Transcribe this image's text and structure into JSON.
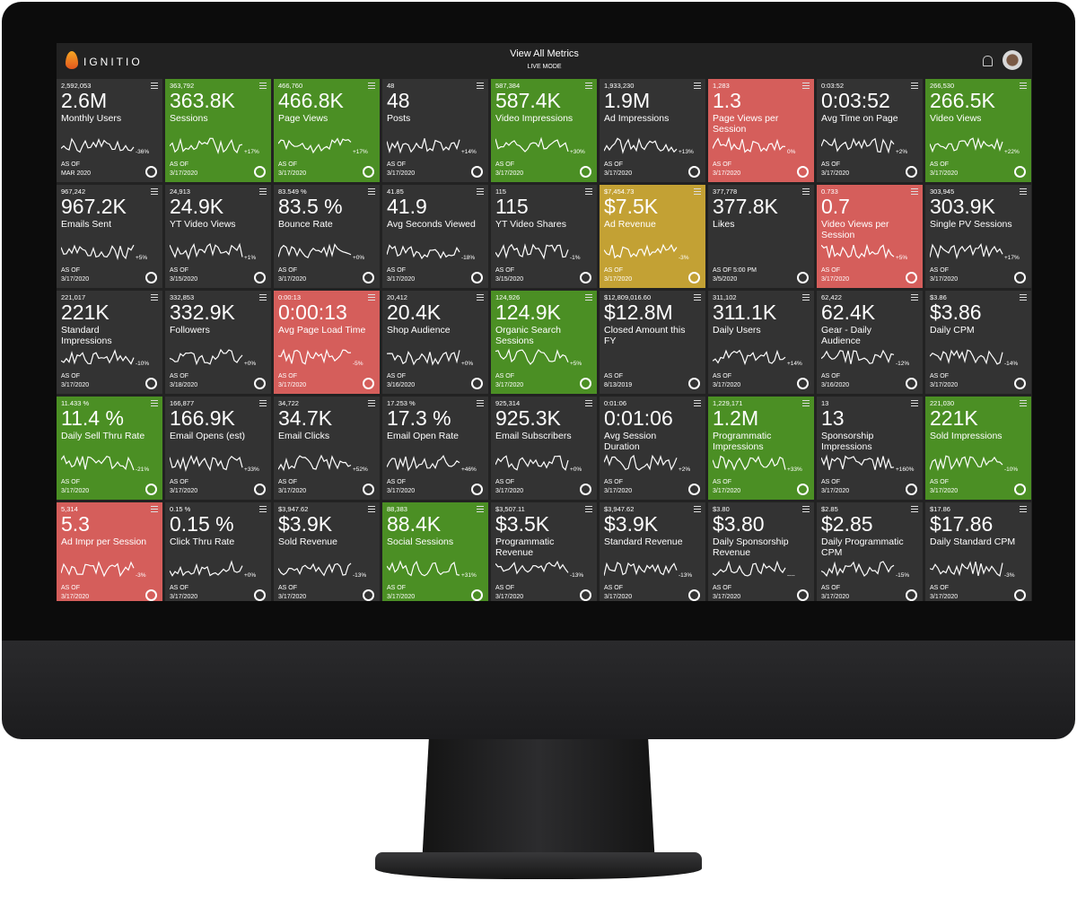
{
  "header": {
    "logo": "IGNITIO",
    "title": "View All Metrics",
    "mode": "LIVE MODE"
  },
  "as_of": "AS OF",
  "tiles": [
    {
      "raw": "2,592,053",
      "value": "2.6M",
      "label": "Monthly Users",
      "change": "-36%",
      "date": "MAR 2020",
      "color": "#333333"
    },
    {
      "raw": "363,792",
      "value": "363.8K",
      "label": "Sessions",
      "change": "+17%",
      "date": "3/17/2020",
      "color": "#4b8f24"
    },
    {
      "raw": "466,760",
      "value": "466.8K",
      "label": "Page Views",
      "change": "+17%",
      "date": "3/17/2020",
      "color": "#4b8f24"
    },
    {
      "raw": "48",
      "value": "48",
      "label": "Posts",
      "change": "+14%",
      "date": "3/17/2020",
      "color": "#333333"
    },
    {
      "raw": "587,384",
      "value": "587.4K",
      "label": "Video Impressions",
      "change": "+30%",
      "date": "3/17/2020",
      "color": "#4b8f24"
    },
    {
      "raw": "1,933,230",
      "value": "1.9M",
      "label": "Ad Impressions",
      "change": "+13%",
      "date": "3/17/2020",
      "color": "#333333"
    },
    {
      "raw": "1,283",
      "value": "1.3",
      "label": "Page Views per Session",
      "change": "0%",
      "date": "3/17/2020",
      "color": "#d55e5b"
    },
    {
      "raw": "0:03:52",
      "value": "0:03:52",
      "label": "Avg Time on Page",
      "change": "+2%",
      "date": "3/17/2020",
      "color": "#333333"
    },
    {
      "raw": "266,530",
      "value": "266.5K",
      "label": "Video Views",
      "change": "+22%",
      "date": "3/17/2020",
      "color": "#4b8f24"
    },
    {
      "raw": "967,242",
      "value": "967.2K",
      "label": "Emails Sent",
      "change": "+5%",
      "date": "3/17/2020",
      "color": "#333333"
    },
    {
      "raw": "24,913",
      "value": "24.9K",
      "label": "YT Video Views",
      "change": "+1%",
      "date": "3/15/2020",
      "color": "#333333"
    },
    {
      "raw": "83.549 %",
      "value": "83.5 %",
      "label": "Bounce Rate",
      "change": "+0%",
      "date": "3/17/2020",
      "color": "#333333"
    },
    {
      "raw": "41.85",
      "value": "41.9",
      "label": "Avg Seconds Viewed",
      "change": "-18%",
      "date": "3/17/2020",
      "color": "#333333"
    },
    {
      "raw": "115",
      "value": "115",
      "label": "YT Video Shares",
      "change": "-1%",
      "date": "3/15/2020",
      "color": "#333333"
    },
    {
      "raw": "$7,454.73",
      "value": "$7.5K",
      "label": "Ad Revenue",
      "change": "-3%",
      "date": "3/17/2020",
      "color": "#c3a134"
    },
    {
      "raw": "377,778",
      "value": "377.8K",
      "label": "Likes",
      "as_of": "AS OF 5:00 PM",
      "date": "3/5/2020",
      "color": "#333333"
    },
    {
      "raw": "0.733",
      "value": "0.7",
      "label": "Video Views per Session",
      "change": "+5%",
      "date": "3/17/2020",
      "color": "#d55e5b"
    },
    {
      "raw": "303,945",
      "value": "303.9K",
      "label": "Single PV Sessions",
      "change": "+17%",
      "date": "3/17/2020",
      "color": "#333333"
    },
    {
      "raw": "221,017",
      "value": "221K",
      "label": "Standard Impressions",
      "change": "-10%",
      "date": "3/17/2020",
      "color": "#333333"
    },
    {
      "raw": "332,853",
      "value": "332.9K",
      "label": "Followers",
      "change": "+0%",
      "date": "3/18/2020",
      "color": "#333333"
    },
    {
      "raw": "0:00:13",
      "value": "0:00:13",
      "label": "Avg Page Load Time",
      "change": "-5%",
      "date": "3/17/2020",
      "color": "#d55e5b"
    },
    {
      "raw": "20,412",
      "value": "20.4K",
      "label": "Shop Audience",
      "change": "+0%",
      "date": "3/16/2020",
      "color": "#333333"
    },
    {
      "raw": "124,926",
      "value": "124.9K",
      "label": "Organic Search Sessions",
      "change": "+5%",
      "date": "3/17/2020",
      "color": "#4b8f24"
    },
    {
      "raw": "$12,809,016.60",
      "value": "$12.8M",
      "label": "Closed Amount this FY",
      "date": "8/13/2019",
      "color": "#333333"
    },
    {
      "raw": "311,102",
      "value": "311.1K",
      "label": "Daily Users",
      "change": "+14%",
      "date": "3/17/2020",
      "color": "#333333"
    },
    {
      "raw": "62,422",
      "value": "62.4K",
      "label": "Gear - Daily Audience",
      "change": "-12%",
      "date": "3/16/2020",
      "color": "#333333"
    },
    {
      "raw": "$3.86",
      "value": "$3.86",
      "label": "Daily CPM",
      "change": "-14%",
      "date": "3/17/2020",
      "color": "#333333"
    },
    {
      "raw": "11.433 %",
      "value": "11.4 %",
      "label": "Daily Sell Thru Rate",
      "change": "-21%",
      "date": "3/17/2020",
      "color": "#4b8f24"
    },
    {
      "raw": "166,877",
      "value": "166.9K",
      "label": "Email Opens (est)",
      "change": "+33%",
      "date": "3/17/2020",
      "color": "#333333"
    },
    {
      "raw": "34,722",
      "value": "34.7K",
      "label": "Email Clicks",
      "change": "+52%",
      "date": "3/17/2020",
      "color": "#333333"
    },
    {
      "raw": "17.253 %",
      "value": "17.3 %",
      "label": "Email Open Rate",
      "change": "+46%",
      "date": "3/17/2020",
      "color": "#333333"
    },
    {
      "raw": "925,314",
      "value": "925.3K",
      "label": "Email Subscribers",
      "change": "+0%",
      "date": "3/17/2020",
      "color": "#333333"
    },
    {
      "raw": "0:01:06",
      "value": "0:01:06",
      "label": "Avg Session Duration",
      "change": "+2%",
      "date": "3/17/2020",
      "color": "#333333"
    },
    {
      "raw": "1,229,171",
      "value": "1.2M",
      "label": "Programmatic Impressions",
      "change": "+33%",
      "date": "3/17/2020",
      "color": "#4b8f24"
    },
    {
      "raw": "13",
      "value": "13",
      "label": "Sponsorship Impressions",
      "change": "+160%",
      "date": "3/17/2020",
      "color": "#333333"
    },
    {
      "raw": "221,030",
      "value": "221K",
      "label": "Sold Impressions",
      "change": "-10%",
      "date": "3/17/2020",
      "color": "#4b8f24"
    },
    {
      "raw": "5,314",
      "value": "5.3",
      "label": "Ad Impr per Session",
      "change": "-3%",
      "date": "3/17/2020",
      "color": "#d55e5b"
    },
    {
      "raw": "0.15 %",
      "value": "0.15 %",
      "label": "Click Thru Rate",
      "change": "+0%",
      "date": "3/17/2020",
      "color": "#333333"
    },
    {
      "raw": "$3,947.62",
      "value": "$3.9K",
      "label": "Sold Revenue",
      "change": "-13%",
      "date": "3/17/2020",
      "color": "#333333"
    },
    {
      "raw": "88,383",
      "value": "88.4K",
      "label": "Social Sessions",
      "change": "+31%",
      "date": "3/17/2020",
      "color": "#4b8f24"
    },
    {
      "raw": "$3,507.11",
      "value": "$3.5K",
      "label": "Programmatic Revenue",
      "change": "-13%",
      "date": "3/17/2020",
      "color": "#333333"
    },
    {
      "raw": "$3,947.62",
      "value": "$3.9K",
      "label": "Standard Revenue",
      "change": "-13%",
      "date": "3/17/2020",
      "color": "#333333"
    },
    {
      "raw": "$3.80",
      "value": "$3.80",
      "label": "Daily Sponsorship Revenue",
      "change": "----",
      "date": "3/17/2020",
      "color": "#333333"
    },
    {
      "raw": "$2.85",
      "value": "$2.85",
      "label": "Daily Programmatic CPM",
      "change": "-15%",
      "date": "3/17/2020",
      "color": "#333333"
    },
    {
      "raw": "$17.86",
      "value": "$17.86",
      "label": "Daily Standard CPM",
      "change": "-3%",
      "date": "3/17/2020",
      "color": "#333333"
    }
  ]
}
